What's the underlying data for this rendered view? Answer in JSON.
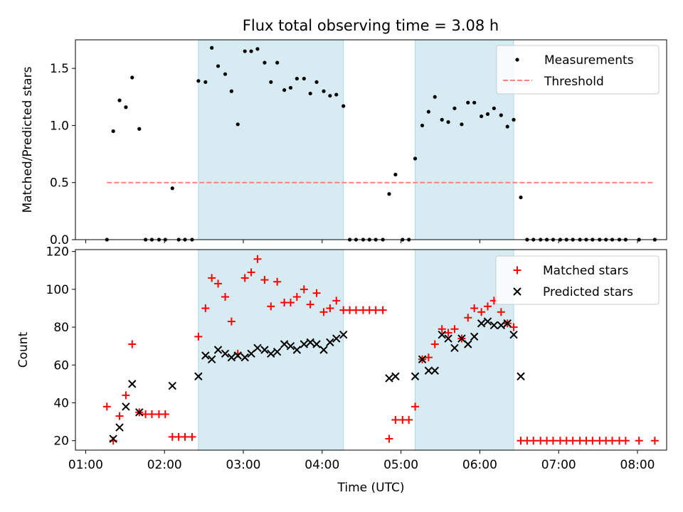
{
  "chart_data": {
    "title": "Flux total observing time = 3.08 h",
    "xlabel": "Time (UTC)",
    "x_unit": "hours UTC",
    "xlim": [
      0.87,
      8.37
    ],
    "xticks": [
      {
        "v": 1,
        "label": "01:00"
      },
      {
        "v": 2,
        "label": "02:00"
      },
      {
        "v": 3,
        "label": "03:00"
      },
      {
        "v": 4,
        "label": "04:00"
      },
      {
        "v": 5,
        "label": "05:00"
      },
      {
        "v": 6,
        "label": "06:00"
      },
      {
        "v": 7,
        "label": "07:00"
      },
      {
        "v": 8,
        "label": "08:00"
      }
    ],
    "shaded_regions": [
      [
        2.43,
        4.27
      ],
      [
        5.18,
        6.43
      ]
    ],
    "shade_color": "#add8e6",
    "top": {
      "type": "scatter",
      "ylabel": "Matched/Predicted stars",
      "ylim": [
        0,
        1.75
      ],
      "yticks": [
        {
          "v": 0,
          "label": "0.0"
        },
        {
          "v": 0.5,
          "label": "0.5"
        },
        {
          "v": 1.0,
          "label": "1.0"
        },
        {
          "v": 1.5,
          "label": "1.5"
        }
      ],
      "legend": {
        "position": "upper right",
        "entries": [
          "Measurements",
          "Threshold"
        ]
      },
      "threshold": {
        "name": "Threshold",
        "y": 0.5,
        "x": [
          1.27,
          8.22
        ],
        "color": "#ff8080"
      },
      "measurements": {
        "name": "Measurements",
        "color": "#000000",
        "points": [
          [
            1.27,
            0
          ],
          [
            1.35,
            0.95
          ],
          [
            1.43,
            1.22
          ],
          [
            1.51,
            1.16
          ],
          [
            1.59,
            1.42
          ],
          [
            1.68,
            0.97
          ],
          [
            1.76,
            0
          ],
          [
            1.84,
            0
          ],
          [
            1.93,
            0
          ],
          [
            2.01,
            0
          ],
          [
            2.1,
            0.45
          ],
          [
            2.18,
            0
          ],
          [
            2.26,
            0
          ],
          [
            2.35,
            0
          ],
          [
            2.43,
            1.39
          ],
          [
            2.52,
            1.38
          ],
          [
            2.6,
            1.68
          ],
          [
            2.68,
            1.52
          ],
          [
            2.77,
            1.45
          ],
          [
            2.85,
            1.3
          ],
          [
            2.93,
            1.01
          ],
          [
            3.02,
            1.65
          ],
          [
            3.1,
            1.65
          ],
          [
            3.18,
            1.67
          ],
          [
            3.27,
            1.55
          ],
          [
            3.35,
            1.38
          ],
          [
            3.43,
            1.55
          ],
          [
            3.52,
            1.31
          ],
          [
            3.6,
            1.33
          ],
          [
            3.68,
            1.41
          ],
          [
            3.77,
            1.41
          ],
          [
            3.85,
            1.28
          ],
          [
            3.93,
            1.38
          ],
          [
            4.02,
            1.3
          ],
          [
            4.1,
            1.26
          ],
          [
            4.18,
            1.27
          ],
          [
            4.27,
            1.17
          ],
          [
            4.35,
            0
          ],
          [
            4.43,
            0
          ],
          [
            4.52,
            0
          ],
          [
            4.6,
            0
          ],
          [
            4.68,
            0
          ],
          [
            4.77,
            0
          ],
          [
            4.85,
            0.4
          ],
          [
            4.93,
            0.57
          ],
          [
            5.02,
            0
          ],
          [
            5.1,
            0
          ],
          [
            5.18,
            0.71
          ],
          [
            5.27,
            1.0
          ],
          [
            5.35,
            1.12
          ],
          [
            5.43,
            1.25
          ],
          [
            5.52,
            1.05
          ],
          [
            5.6,
            1.03
          ],
          [
            5.68,
            1.15
          ],
          [
            5.77,
            1.01
          ],
          [
            5.85,
            1.2
          ],
          [
            5.93,
            1.2
          ],
          [
            6.02,
            1.08
          ],
          [
            6.1,
            1.1
          ],
          [
            6.18,
            1.15
          ],
          [
            6.27,
            1.09
          ],
          [
            6.35,
            0.99
          ],
          [
            6.43,
            1.05
          ],
          [
            6.52,
            0.37
          ],
          [
            6.6,
            0
          ],
          [
            6.68,
            0
          ],
          [
            6.77,
            0
          ],
          [
            6.85,
            0
          ],
          [
            6.93,
            0
          ],
          [
            7.02,
            0
          ],
          [
            7.1,
            0
          ],
          [
            7.18,
            0
          ],
          [
            7.27,
            0
          ],
          [
            7.35,
            0
          ],
          [
            7.43,
            0
          ],
          [
            7.52,
            0
          ],
          [
            7.6,
            0
          ],
          [
            7.68,
            0
          ],
          [
            7.77,
            0
          ],
          [
            7.85,
            0
          ],
          [
            8.02,
            0
          ],
          [
            8.22,
            0
          ]
        ]
      }
    },
    "bottom": {
      "type": "scatter",
      "ylabel": "Count",
      "ylim": [
        15,
        121
      ],
      "yticks": [
        {
          "v": 20,
          "label": "20"
        },
        {
          "v": 40,
          "label": "40"
        },
        {
          "v": 60,
          "label": "60"
        },
        {
          "v": 80,
          "label": "80"
        },
        {
          "v": 100,
          "label": "100"
        },
        {
          "v": 120,
          "label": "120"
        }
      ],
      "legend": {
        "position": "upper right",
        "entries": [
          "Matched stars",
          "Predicted stars"
        ]
      },
      "series": [
        {
          "name": "Matched stars",
          "marker": "plus",
          "color": "#ff0000",
          "points": [
            [
              1.27,
              38
            ],
            [
              1.35,
              20
            ],
            [
              1.43,
              33
            ],
            [
              1.51,
              44
            ],
            [
              1.59,
              71
            ],
            [
              1.68,
              35
            ],
            [
              1.76,
              34
            ],
            [
              1.84,
              34
            ],
            [
              1.93,
              34
            ],
            [
              2.01,
              34
            ],
            [
              2.1,
              22
            ],
            [
              2.18,
              22
            ],
            [
              2.26,
              22
            ],
            [
              2.35,
              22
            ],
            [
              2.43,
              75
            ],
            [
              2.52,
              90
            ],
            [
              2.6,
              106
            ],
            [
              2.68,
              103
            ],
            [
              2.77,
              96
            ],
            [
              2.85,
              83
            ],
            [
              2.93,
              66
            ],
            [
              3.02,
              106
            ],
            [
              3.1,
              109
            ],
            [
              3.18,
              116
            ],
            [
              3.27,
              105
            ],
            [
              3.35,
              91
            ],
            [
              3.43,
              104
            ],
            [
              3.52,
              93
            ],
            [
              3.6,
              93
            ],
            [
              3.68,
              96
            ],
            [
              3.77,
              100
            ],
            [
              3.85,
              92
            ],
            [
              3.93,
              98
            ],
            [
              4.02,
              88
            ],
            [
              4.1,
              90
            ],
            [
              4.18,
              94
            ],
            [
              4.27,
              89
            ],
            [
              4.35,
              89
            ],
            [
              4.43,
              89
            ],
            [
              4.52,
              89
            ],
            [
              4.6,
              89
            ],
            [
              4.68,
              89
            ],
            [
              4.77,
              89
            ],
            [
              4.85,
              21
            ],
            [
              4.93,
              31
            ],
            [
              5.02,
              31
            ],
            [
              5.1,
              31
            ],
            [
              5.18,
              38
            ],
            [
              5.27,
              63
            ],
            [
              5.35,
              64
            ],
            [
              5.43,
              71
            ],
            [
              5.52,
              79
            ],
            [
              5.6,
              77
            ],
            [
              5.68,
              79
            ],
            [
              5.77,
              74
            ],
            [
              5.85,
              85
            ],
            [
              5.93,
              90
            ],
            [
              6.02,
              88
            ],
            [
              6.1,
              91
            ],
            [
              6.18,
              94
            ],
            [
              6.27,
              88
            ],
            [
              6.35,
              82
            ],
            [
              6.43,
              80
            ],
            [
              6.52,
              20
            ],
            [
              6.6,
              20
            ],
            [
              6.68,
              20
            ],
            [
              6.77,
              20
            ],
            [
              6.85,
              20
            ],
            [
              6.93,
              20
            ],
            [
              7.02,
              20
            ],
            [
              7.1,
              20
            ],
            [
              7.18,
              20
            ],
            [
              7.27,
              20
            ],
            [
              7.35,
              20
            ],
            [
              7.43,
              20
            ],
            [
              7.52,
              20
            ],
            [
              7.6,
              20
            ],
            [
              7.68,
              20
            ],
            [
              7.77,
              20
            ],
            [
              7.85,
              20
            ],
            [
              8.02,
              20
            ],
            [
              8.22,
              20
            ]
          ]
        },
        {
          "name": "Predicted stars",
          "marker": "x",
          "color": "#000000",
          "points": [
            [
              1.35,
              21
            ],
            [
              1.43,
              27
            ],
            [
              1.51,
              38
            ],
            [
              1.59,
              50
            ],
            [
              1.68,
              35
            ],
            [
              2.1,
              49
            ],
            [
              2.43,
              54
            ],
            [
              2.52,
              65
            ],
            [
              2.6,
              63
            ],
            [
              2.68,
              68
            ],
            [
              2.77,
              66
            ],
            [
              2.85,
              64
            ],
            [
              2.93,
              65
            ],
            [
              3.02,
              64
            ],
            [
              3.1,
              66
            ],
            [
              3.18,
              69
            ],
            [
              3.27,
              68
            ],
            [
              3.35,
              66
            ],
            [
              3.43,
              67
            ],
            [
              3.52,
              71
            ],
            [
              3.6,
              70
            ],
            [
              3.68,
              68
            ],
            [
              3.77,
              71
            ],
            [
              3.85,
              72
            ],
            [
              3.93,
              71
            ],
            [
              4.02,
              68
            ],
            [
              4.1,
              72
            ],
            [
              4.18,
              74
            ],
            [
              4.27,
              76
            ],
            [
              4.85,
              53
            ],
            [
              4.93,
              54
            ],
            [
              5.18,
              54
            ],
            [
              5.27,
              63
            ],
            [
              5.35,
              57
            ],
            [
              5.43,
              57
            ],
            [
              5.52,
              76
            ],
            [
              5.6,
              74
            ],
            [
              5.68,
              69
            ],
            [
              5.77,
              74
            ],
            [
              5.85,
              71
            ],
            [
              5.93,
              75
            ],
            [
              6.02,
              82
            ],
            [
              6.1,
              83
            ],
            [
              6.18,
              81
            ],
            [
              6.27,
              81
            ],
            [
              6.35,
              82
            ],
            [
              6.43,
              76
            ],
            [
              6.52,
              54
            ]
          ]
        }
      ]
    }
  }
}
